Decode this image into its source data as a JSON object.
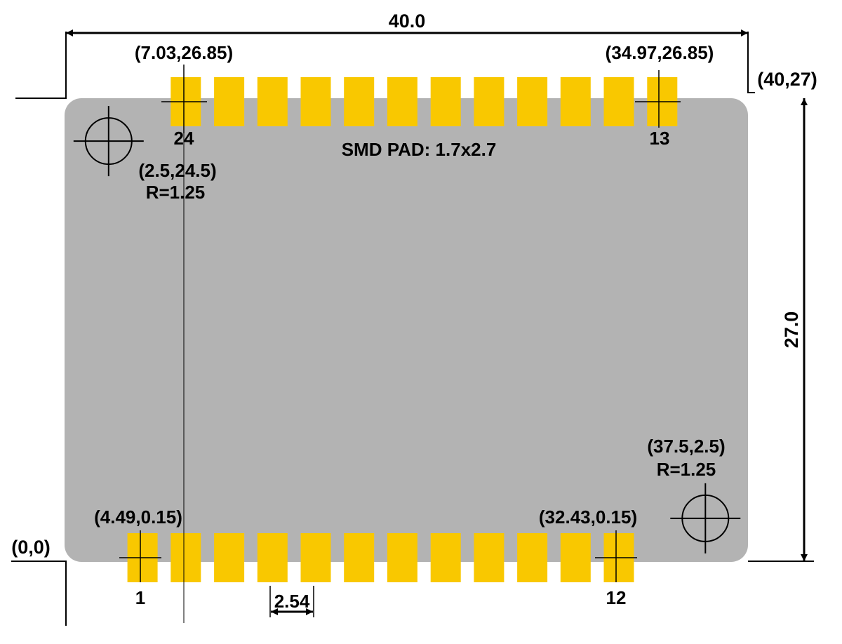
{
  "colors": {
    "board": "#b3b3b3",
    "pad": "#f9c800",
    "line": "#000000",
    "background": "#ffffff"
  },
  "board": {
    "width": 40.0,
    "height": 27.0
  },
  "dimensions": {
    "width_label": "40.0",
    "height_label": "27.0",
    "pitch_label": "2.54"
  },
  "corners": {
    "origin_label": "(0,0)",
    "far_label": "(40,27)"
  },
  "pad_label": "SMD PAD: 1.7x2.7",
  "pads": {
    "pitch": 2.54,
    "size": [
      1.7,
      2.7
    ],
    "bottom_row": {
      "first_x": 4.49,
      "y": 0.15,
      "count": 12,
      "first_pin": "1",
      "last_pin": "12"
    },
    "top_row": {
      "first_x": 7.03,
      "y": 26.85,
      "count": 12,
      "first_pin": "24",
      "last_pin": "13"
    }
  },
  "reference_points": {
    "bottom_left": "(4.49,0.15)",
    "bottom_right": "(32.43,0.15)",
    "top_left": "(7.03,26.85)",
    "top_right": "(34.97,26.85)"
  },
  "holes": [
    {
      "x": 2.5,
      "y": 24.5,
      "r": 1.25,
      "label": "(2.5,24.5)",
      "r_label": "R=1.25"
    },
    {
      "x": 37.5,
      "y": 2.5,
      "r": 1.25,
      "label": "(37.5,2.5)",
      "r_label": "R=1.25"
    }
  ]
}
